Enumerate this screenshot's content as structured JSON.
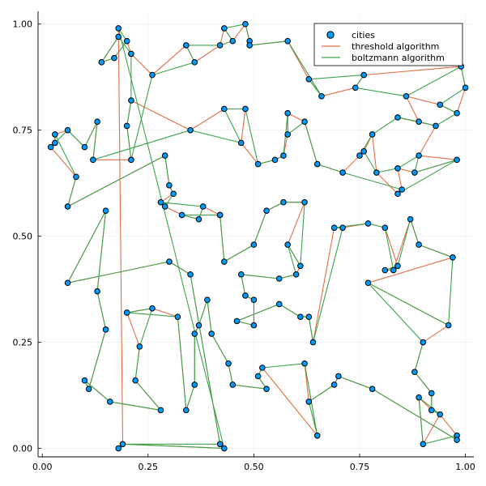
{
  "chart_data": {
    "type": "scatter",
    "title": "",
    "xlabel": "",
    "ylabel": "",
    "xlim": [
      -0.01,
      1.02
    ],
    "ylim": [
      -0.02,
      1.03
    ],
    "xticks": [
      0.0,
      0.25,
      0.5,
      0.75,
      1.0
    ],
    "yticks": [
      0.0,
      0.25,
      0.5,
      0.75,
      1.0
    ],
    "xtick_labels": [
      "0.00",
      "0.25",
      "0.50",
      "0.75",
      "1.00"
    ],
    "ytick_labels": [
      "0.00",
      "0.25",
      "0.50",
      "0.75",
      "1.00"
    ],
    "grid": true,
    "legend_position": "top-right",
    "legend": [
      "cities",
      "threshold algorithm",
      "boltzmann algorithm"
    ],
    "colors": {
      "cities": "#009AFA",
      "threshold": "#E26F46",
      "boltzmann": "#3DA44D"
    },
    "cities": [
      [
        0.18,
        0.99
      ],
      [
        0.18,
        0.97
      ],
      [
        0.2,
        0.96
      ],
      [
        0.21,
        0.93
      ],
      [
        0.17,
        0.92
      ],
      [
        0.14,
        0.91
      ],
      [
        0.26,
        0.88
      ],
      [
        0.34,
        0.95
      ],
      [
        0.36,
        0.91
      ],
      [
        0.42,
        0.95
      ],
      [
        0.43,
        0.99
      ],
      [
        0.45,
        0.96
      ],
      [
        0.48,
        1.0
      ],
      [
        0.49,
        0.96
      ],
      [
        0.49,
        0.95
      ],
      [
        0.58,
        0.96
      ],
      [
        0.63,
        0.87
      ],
      [
        0.66,
        0.83
      ],
      [
        0.76,
        0.88
      ],
      [
        0.74,
        0.85
      ],
      [
        0.86,
        0.83
      ],
      [
        0.99,
        0.9
      ],
      [
        1.0,
        0.85
      ],
      [
        0.94,
        0.81
      ],
      [
        0.98,
        0.79
      ],
      [
        0.93,
        0.76
      ],
      [
        0.89,
        0.77
      ],
      [
        0.84,
        0.78
      ],
      [
        0.78,
        0.74
      ],
      [
        0.76,
        0.7
      ],
      [
        0.75,
        0.69
      ],
      [
        0.79,
        0.65
      ],
      [
        0.84,
        0.66
      ],
      [
        0.89,
        0.69
      ],
      [
        0.88,
        0.65
      ],
      [
        0.98,
        0.68
      ],
      [
        0.85,
        0.61
      ],
      [
        0.84,
        0.6
      ],
      [
        0.71,
        0.65
      ],
      [
        0.65,
        0.67
      ],
      [
        0.62,
        0.77
      ],
      [
        0.58,
        0.79
      ],
      [
        0.58,
        0.74
      ],
      [
        0.57,
        0.69
      ],
      [
        0.55,
        0.68
      ],
      [
        0.51,
        0.67
      ],
      [
        0.47,
        0.72
      ],
      [
        0.48,
        0.8
      ],
      [
        0.43,
        0.8
      ],
      [
        0.35,
        0.75
      ],
      [
        0.21,
        0.82
      ],
      [
        0.2,
        0.76
      ],
      [
        0.21,
        0.68
      ],
      [
        0.12,
        0.68
      ],
      [
        0.13,
        0.77
      ],
      [
        0.1,
        0.71
      ],
      [
        0.06,
        0.75
      ],
      [
        0.02,
        0.71
      ],
      [
        0.03,
        0.72
      ],
      [
        0.03,
        0.74
      ],
      [
        0.08,
        0.64
      ],
      [
        0.06,
        0.57
      ],
      [
        0.29,
        0.69
      ],
      [
        0.3,
        0.62
      ],
      [
        0.31,
        0.6
      ],
      [
        0.28,
        0.58
      ],
      [
        0.29,
        0.57
      ],
      [
        0.38,
        0.57
      ],
      [
        0.37,
        0.54
      ],
      [
        0.33,
        0.55
      ],
      [
        0.42,
        0.55
      ],
      [
        0.43,
        0.44
      ],
      [
        0.42,
        0.55
      ],
      [
        0.5,
        0.48
      ],
      [
        0.53,
        0.56
      ],
      [
        0.57,
        0.58
      ],
      [
        0.62,
        0.58
      ],
      [
        0.58,
        0.48
      ],
      [
        0.61,
        0.43
      ],
      [
        0.6,
        0.41
      ],
      [
        0.56,
        0.4
      ],
      [
        0.47,
        0.41
      ],
      [
        0.48,
        0.36
      ],
      [
        0.5,
        0.35
      ],
      [
        0.5,
        0.29
      ],
      [
        0.46,
        0.3
      ],
      [
        0.56,
        0.34
      ],
      [
        0.61,
        0.31
      ],
      [
        0.63,
        0.31
      ],
      [
        0.64,
        0.25
      ],
      [
        0.69,
        0.52
      ],
      [
        0.71,
        0.52
      ],
      [
        0.77,
        0.53
      ],
      [
        0.81,
        0.52
      ],
      [
        0.84,
        0.43
      ],
      [
        0.83,
        0.42
      ],
      [
        0.87,
        0.54
      ],
      [
        0.89,
        0.48
      ],
      [
        0.97,
        0.45
      ],
      [
        0.81,
        0.42
      ],
      [
        0.77,
        0.39
      ],
      [
        0.96,
        0.29
      ],
      [
        0.9,
        0.25
      ],
      [
        0.88,
        0.18
      ],
      [
        0.92,
        0.13
      ],
      [
        0.92,
        0.09
      ],
      [
        0.89,
        0.12
      ],
      [
        0.94,
        0.08
      ],
      [
        0.9,
        0.01
      ],
      [
        0.98,
        0.03
      ],
      [
        0.98,
        0.02
      ],
      [
        0.78,
        0.14
      ],
      [
        0.7,
        0.17
      ],
      [
        0.69,
        0.15
      ],
      [
        0.63,
        0.11
      ],
      [
        0.62,
        0.2
      ],
      [
        0.65,
        0.03
      ],
      [
        0.52,
        0.19
      ],
      [
        0.51,
        0.17
      ],
      [
        0.53,
        0.14
      ],
      [
        0.45,
        0.15
      ],
      [
        0.44,
        0.2
      ],
      [
        0.4,
        0.27
      ],
      [
        0.39,
        0.35
      ],
      [
        0.37,
        0.29
      ],
      [
        0.36,
        0.27
      ],
      [
        0.36,
        0.15
      ],
      [
        0.34,
        0.09
      ],
      [
        0.32,
        0.31
      ],
      [
        0.26,
        0.33
      ],
      [
        0.2,
        0.32
      ],
      [
        0.23,
        0.24
      ],
      [
        0.22,
        0.16
      ],
      [
        0.28,
        0.09
      ],
      [
        0.16,
        0.11
      ],
      [
        0.1,
        0.16
      ],
      [
        0.11,
        0.14
      ],
      [
        0.15,
        0.28
      ],
      [
        0.13,
        0.37
      ],
      [
        0.15,
        0.56
      ],
      [
        0.06,
        0.39
      ],
      [
        0.3,
        0.44
      ],
      [
        0.35,
        0.41
      ],
      [
        0.42,
        0.01
      ],
      [
        0.43,
        0.0
      ],
      [
        0.19,
        0.01
      ],
      [
        0.18,
        0.0
      ]
    ],
    "threshold_path": [
      0,
      1,
      5,
      4,
      2,
      3,
      6,
      7,
      8,
      9,
      10,
      11,
      12,
      13,
      14,
      15,
      16,
      17,
      19,
      18,
      21,
      22,
      24,
      23,
      20,
      26,
      27,
      25,
      33,
      35,
      34,
      32,
      36,
      37,
      31,
      28,
      29,
      30,
      38,
      39,
      40,
      41,
      42,
      43,
      44,
      45,
      46,
      47,
      48,
      49,
      50,
      51,
      52,
      53,
      54,
      55,
      56,
      59,
      58,
      57,
      60,
      61,
      62,
      63,
      64,
      65,
      66,
      69,
      68,
      67,
      70,
      72,
      71,
      73,
      74,
      75,
      76,
      77,
      78,
      79,
      80,
      81,
      82,
      83,
      84,
      85,
      86,
      87,
      88,
      89,
      90,
      91,
      92,
      93,
      94,
      99,
      95,
      96,
      97,
      98,
      100,
      101,
      102,
      103,
      104,
      105,
      106,
      108,
      107,
      109,
      110,
      111,
      112,
      113,
      114,
      115,
      116,
      117,
      118,
      119,
      120,
      121,
      122,
      123,
      124,
      125,
      126,
      127,
      128,
      129,
      130,
      131,
      132,
      133,
      134,
      135,
      136,
      137,
      138,
      139,
      140,
      141,
      142,
      143,
      144,
      145,
      0
    ],
    "boltzmann_path": [
      0,
      2,
      4,
      5,
      1,
      3,
      50,
      51,
      52,
      6,
      8,
      7,
      9,
      11,
      10,
      12,
      13,
      14,
      15,
      17,
      16,
      18,
      19,
      20,
      21,
      22,
      23,
      24,
      25,
      26,
      27,
      28,
      30,
      29,
      31,
      32,
      33,
      34,
      35,
      37,
      36,
      38,
      39,
      40,
      42,
      41,
      43,
      44,
      45,
      47,
      48,
      46,
      49,
      53,
      54,
      55,
      56,
      57,
      58,
      59,
      60,
      61,
      62,
      63,
      64,
      66,
      65,
      67,
      68,
      69,
      70,
      72,
      71,
      73,
      74,
      75,
      76,
      78,
      77,
      79,
      80,
      81,
      82,
      83,
      84,
      85,
      86,
      87,
      88,
      89,
      91,
      90,
      92,
      93,
      95,
      99,
      94,
      96,
      97,
      98,
      101,
      100,
      102,
      103,
      104,
      105,
      107,
      106,
      108,
      109,
      110,
      111,
      112,
      113,
      114,
      116,
      115,
      117,
      118,
      119,
      120,
      121,
      122,
      123,
      124,
      125,
      126,
      127,
      128,
      130,
      129,
      131,
      132,
      133,
      134,
      135,
      136,
      137,
      138,
      139,
      140,
      141,
      142,
      143,
      145,
      144,
      0
    ]
  }
}
